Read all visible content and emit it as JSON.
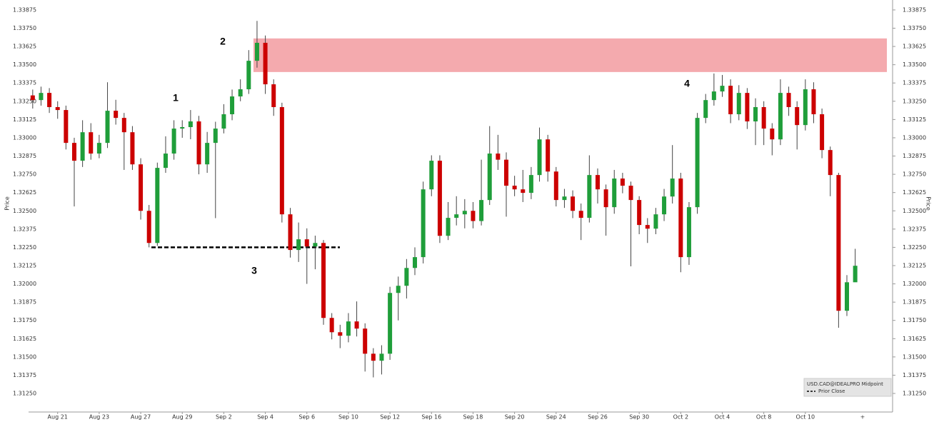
{
  "chart_data": {
    "type": "candlestick",
    "y_label": "Price",
    "ylim": [
      1.31123,
      1.33943
    ],
    "yticks": [
      {
        "value": 1.3125,
        "label": "1.31250"
      },
      1.31375,
      {
        "value": 1.315,
        "label": "1.31500"
      },
      1.31625,
      {
        "value": 1.3175,
        "label": "1.31750"
      },
      1.31875,
      {
        "value": 1.32,
        "label": "1.32000"
      },
      1.32125,
      {
        "value": 1.3225,
        "label": "1.32250"
      },
      1.32375,
      {
        "value": 1.325,
        "label": "1.32500"
      },
      1.32625,
      {
        "value": 1.3275,
        "label": "1.32750"
      },
      1.32875,
      {
        "value": 1.33,
        "label": "1.33000"
      },
      1.33125,
      {
        "value": 1.3325,
        "label": "1.33250"
      },
      1.33375,
      {
        "value": 1.335,
        "label": "1.33500"
      },
      1.33625,
      {
        "value": 1.3375,
        "label": "1.33750"
      },
      1.33875
    ],
    "categories": [
      null,
      null,
      null,
      "Aug 21",
      null,
      null,
      null,
      null,
      "Aug 23",
      null,
      null,
      null,
      null,
      "Aug 27",
      null,
      null,
      null,
      null,
      "Aug 29",
      null,
      null,
      null,
      null,
      "Sep 2",
      null,
      null,
      null,
      null,
      "Sep 4",
      null,
      null,
      null,
      null,
      "Sep 6",
      null,
      null,
      null,
      null,
      "Sep 10",
      null,
      null,
      null,
      null,
      "Sep 12",
      null,
      null,
      null,
      null,
      "Sep 16",
      null,
      null,
      null,
      null,
      "Sep 18",
      null,
      null,
      null,
      null,
      "Sep 20",
      null,
      null,
      null,
      null,
      "Sep 24",
      null,
      null,
      null,
      null,
      "Sep 26",
      null,
      null,
      null,
      null,
      "Sep 30",
      null,
      null,
      null,
      null,
      "Oct 2",
      null,
      null,
      null,
      null,
      "Oct 4",
      null,
      null,
      null,
      null,
      "Oct 8",
      null,
      null,
      null,
      null,
      "Oct 10",
      null,
      null,
      null,
      null,
      null,
      null
    ],
    "up_color": "#1f9e3a",
    "down_color": "#cc0000",
    "series": [
      {
        "name": "USD.CAD@IDEALPRO Midpoint",
        "open": [
          1.3329,
          1.33258,
          1.33307,
          1.3321,
          1.3319,
          1.32965,
          1.32843,
          1.33038,
          1.32892,
          1.32965,
          1.33185,
          1.33136,
          1.33038,
          1.32818,
          1.325,
          1.3228,
          1.32794,
          1.32892,
          1.33063,
          1.33073,
          1.33112,
          1.32818,
          1.32965,
          1.33063,
          1.33161,
          1.33283,
          1.33332,
          1.33527,
          1.3365,
          1.33366,
          1.3321,
          1.32476,
          1.32232,
          1.32305,
          1.32256,
          1.3228,
          1.31767,
          1.31669,
          1.31645,
          1.31743,
          1.31694,
          1.31522,
          1.31474,
          1.31522,
          1.31938,
          1.31987,
          1.32109,
          1.32183,
          1.32647,
          1.32843,
          1.32329,
          1.32452,
          1.32476,
          1.325,
          1.3243,
          1.32574,
          1.32892,
          1.3285,
          1.32672,
          1.32647,
          1.32623,
          1.32745,
          1.32989,
          1.32769,
          1.32574,
          1.32598,
          1.325,
          1.32452,
          1.32745,
          1.32647,
          1.32525,
          1.32721,
          1.32672,
          1.32574,
          1.32403,
          1.32378,
          1.32476,
          1.32598,
          1.32721,
          1.32183,
          1.32525,
          1.33136,
          1.33258,
          1.33317,
          1.33356,
          1.33161,
          1.33307,
          1.33112,
          1.3321,
          1.33063,
          1.32989,
          1.33307,
          1.3321,
          1.33087,
          1.33332,
          1.33161,
          1.32916,
          1.32745,
          1.31816,
          1.32011
        ],
        "high": [
          1.3333,
          1.3335,
          1.3334,
          1.3325,
          1.3322,
          1.33,
          1.3312,
          1.331,
          1.3302,
          1.3338,
          1.3326,
          1.3317,
          1.3308,
          1.3286,
          1.3254,
          1.3283,
          1.3301,
          1.3312,
          1.3312,
          1.3319,
          1.3315,
          1.3304,
          1.3311,
          1.3323,
          1.3333,
          1.334,
          1.336,
          1.338,
          1.337,
          1.334,
          1.3324,
          1.3252,
          1.3242,
          1.3238,
          1.3233,
          1.323,
          1.318,
          1.3172,
          1.318,
          1.3188,
          1.3173,
          1.3156,
          1.3158,
          1.3198,
          1.3205,
          1.3217,
          1.3225,
          1.327,
          1.3288,
          1.3288,
          1.3256,
          1.326,
          1.3258,
          1.3256,
          1.3285,
          1.3308,
          1.3302,
          1.329,
          1.3274,
          1.3278,
          1.328,
          1.3307,
          1.3302,
          1.328,
          1.3265,
          1.3264,
          1.3255,
          1.3288,
          1.3279,
          1.3268,
          1.3278,
          1.3276,
          1.327,
          1.326,
          1.3245,
          1.3252,
          1.3265,
          1.3295,
          1.3276,
          1.3256,
          1.3317,
          1.333,
          1.3344,
          1.3343,
          1.334,
          1.3336,
          1.3334,
          1.3327,
          1.3325,
          1.331,
          1.334,
          1.3335,
          1.3325,
          1.334,
          1.3338,
          1.332,
          1.3294,
          1.3276,
          1.3206,
          1.3224
        ],
        "low": [
          1.332,
          1.3322,
          1.3317,
          1.3313,
          1.3292,
          1.3253,
          1.328,
          1.3285,
          1.3286,
          1.3293,
          1.3309,
          1.3278,
          1.3278,
          1.3244,
          1.3225,
          1.3226,
          1.3276,
          1.3285,
          1.33,
          1.3299,
          1.3275,
          1.3276,
          1.3245,
          1.3303,
          1.3312,
          1.3325,
          1.333,
          1.3348,
          1.333,
          1.3315,
          1.3242,
          1.3218,
          1.3215,
          1.32,
          1.321,
          1.3172,
          1.3162,
          1.3156,
          1.316,
          1.3164,
          1.314,
          1.3136,
          1.3138,
          1.3148,
          1.3175,
          1.319,
          1.3206,
          1.3214,
          1.326,
          1.3228,
          1.323,
          1.324,
          1.3238,
          1.3238,
          1.324,
          1.3254,
          1.3278,
          1.3246,
          1.326,
          1.3256,
          1.3258,
          1.327,
          1.327,
          1.3253,
          1.3252,
          1.3245,
          1.323,
          1.3242,
          1.3255,
          1.3233,
          1.3248,
          1.3262,
          1.3212,
          1.3234,
          1.3228,
          1.3234,
          1.3243,
          1.3255,
          1.3208,
          1.3213,
          1.3248,
          1.331,
          1.3322,
          1.3328,
          1.331,
          1.3312,
          1.3306,
          1.3295,
          1.3295,
          1.3288,
          1.3295,
          1.3315,
          1.3292,
          1.3305,
          1.331,
          1.3286,
          1.326,
          1.317,
          1.3178,
          1.3203
        ],
        "close": [
          1.33258,
          1.33307,
          1.3321,
          1.3319,
          1.32965,
          1.32843,
          1.33038,
          1.32892,
          1.32965,
          1.33185,
          1.33136,
          1.33038,
          1.32818,
          1.325,
          1.3228,
          1.32794,
          1.32892,
          1.33063,
          1.33073,
          1.33112,
          1.32818,
          1.32965,
          1.33063,
          1.33161,
          1.33283,
          1.33332,
          1.33527,
          1.3365,
          1.33366,
          1.3321,
          1.32476,
          1.32232,
          1.32305,
          1.32256,
          1.3228,
          1.31767,
          1.31669,
          1.31645,
          1.31743,
          1.31694,
          1.31522,
          1.31474,
          1.31522,
          1.31938,
          1.31987,
          1.32109,
          1.32183,
          1.32647,
          1.32843,
          1.32329,
          1.32452,
          1.32476,
          1.325,
          1.3243,
          1.32574,
          1.32892,
          1.3285,
          1.32672,
          1.32647,
          1.32623,
          1.32745,
          1.32989,
          1.32769,
          1.32574,
          1.32598,
          1.325,
          1.32452,
          1.32745,
          1.32647,
          1.32525,
          1.32721,
          1.32672,
          1.32574,
          1.32403,
          1.32378,
          1.32476,
          1.32598,
          1.32721,
          1.32183,
          1.32525,
          1.33136,
          1.33258,
          1.33317,
          1.33356,
          1.33161,
          1.33307,
          1.33112,
          1.3321,
          1.33063,
          1.32989,
          1.33307,
          1.3321,
          1.33087,
          1.33332,
          1.33161,
          1.32916,
          1.32745,
          1.31816,
          1.32011,
          1.32124
        ]
      }
    ],
    "prior_close": {
      "name": "Prior Close",
      "value": 1.3225
    },
    "zone": {
      "low": 1.3345,
      "high": 1.3368,
      "color": "#f4aaae"
    },
    "annotations": [
      "1",
      "2",
      "3",
      "4"
    ]
  }
}
